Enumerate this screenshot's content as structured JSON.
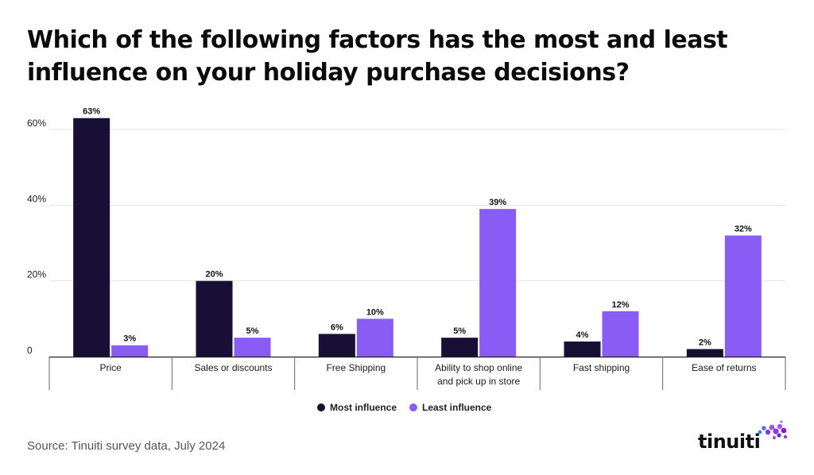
{
  "title": "Which of the following factors has the most and least influence on your holiday purchase decisions?",
  "source": "Source: Tinuiti survey data, July 2024",
  "brand": "tinuiti",
  "colors": {
    "most": "#180f36",
    "least": "#8a5cf6",
    "grid": "#e2e2e2",
    "axis": "#222222"
  },
  "chart_data": {
    "type": "bar",
    "title": "Which of the following factors has the most and least influence on your holiday purchase decisions?",
    "categories": [
      [
        "Price"
      ],
      [
        "Sales or discounts"
      ],
      [
        "Free Shipping"
      ],
      [
        "Ability to shop online",
        "and pick up in store"
      ],
      [
        "Fast shipping"
      ],
      [
        "Ease of returns"
      ]
    ],
    "series": [
      {
        "name": "Most influence",
        "values": [
          63,
          20,
          6,
          5,
          4,
          2
        ],
        "labels": [
          "63%",
          "20%",
          "6%",
          "5%",
          "4%",
          "2%"
        ]
      },
      {
        "name": "Least influence",
        "values": [
          3,
          5,
          10,
          39,
          12,
          32
        ],
        "labels": [
          "3%",
          "5%",
          "10%",
          "39%",
          "12%",
          "32%"
        ]
      }
    ],
    "yticks": [
      {
        "value": 0,
        "label": "0"
      },
      {
        "value": 20,
        "label": "20%"
      },
      {
        "value": 40,
        "label": "40%"
      },
      {
        "value": 60,
        "label": "60%"
      }
    ],
    "ylim": [
      0,
      60
    ],
    "xlabel": "",
    "ylabel": "",
    "legend_position": "bottom-center",
    "grid": true
  }
}
